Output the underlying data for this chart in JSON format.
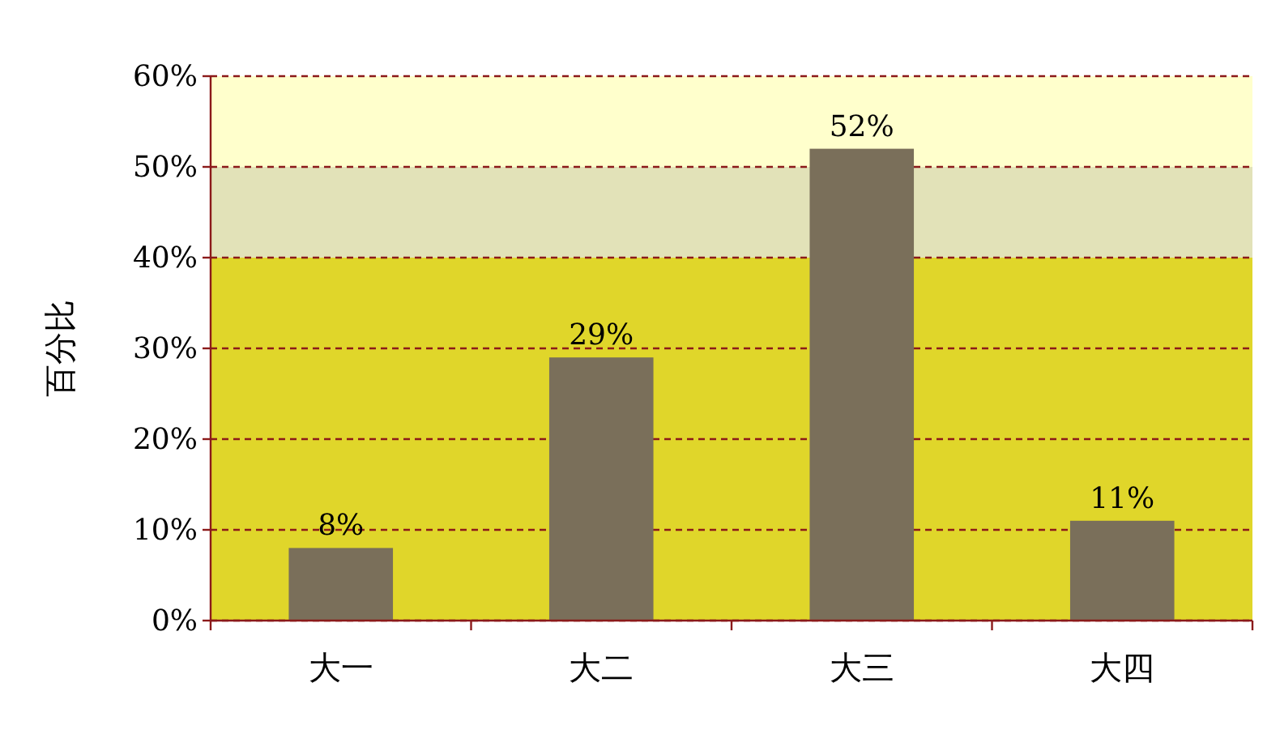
{
  "chart_data": {
    "type": "bar",
    "ylabel": "百分比",
    "categories": [
      "大一",
      "大二",
      "大三",
      "大四"
    ],
    "values": [
      8,
      29,
      52,
      11
    ],
    "value_labels": [
      "8%",
      "29%",
      "52%",
      "11%"
    ],
    "color": "#7a6f5a",
    "ylim": [
      0,
      60
    ],
    "yticks": [
      {
        "value": 0,
        "label": "0%"
      },
      {
        "value": 10,
        "label": "10%"
      },
      {
        "value": 20,
        "label": "20%"
      },
      {
        "value": 30,
        "label": "30%"
      },
      {
        "value": 40,
        "label": "40%"
      },
      {
        "value": 50,
        "label": "50%"
      },
      {
        "value": 60,
        "label": "60%"
      }
    ],
    "grid": "y",
    "bands": [
      {
        "axis": "y",
        "from": 0,
        "to": 40,
        "color": "#e0d62a"
      },
      {
        "axis": "y",
        "from": 40,
        "to": 50,
        "color": "#e2e2b8"
      },
      {
        "axis": "y",
        "from": 50,
        "to": 60,
        "color": "#ffffcc"
      }
    ]
  }
}
